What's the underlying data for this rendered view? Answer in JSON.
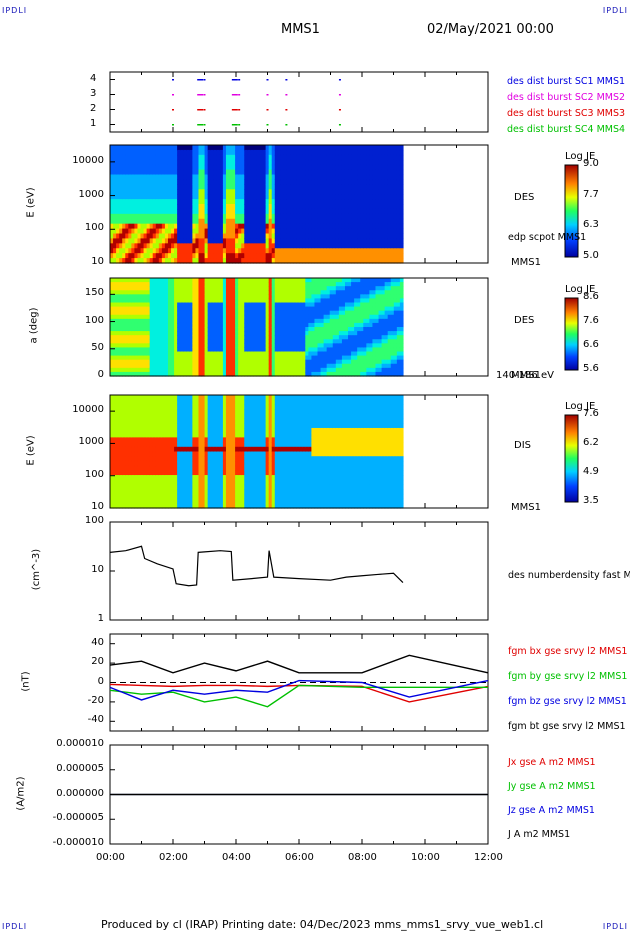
{
  "corners": {
    "tl": "IPDLI",
    "tr": "IPDLI",
    "bl": "IPDLI",
    "br": "IPDLI"
  },
  "header": {
    "mission": "MMS1",
    "date": "02/May/2021 00:00"
  },
  "footer": {
    "text": "Produced by cl (IRAP)   Printing date: 04/Dec/2023   mms_mms1_srvy_vue_web1.cl"
  },
  "colors": {
    "red": "#e00000",
    "magenta": "#e000e0",
    "blue": "#0000e0",
    "green": "#00c000",
    "black": "#000000"
  },
  "chart_data": [
    {
      "type": "scatter",
      "title": "",
      "x_ticks": [
        "00:00",
        "02:00",
        "04:00",
        "06:00",
        "08:00",
        "10:00",
        "12:00"
      ],
      "y_ticks": [
        "1",
        "2",
        "3",
        "4"
      ],
      "ylim": [
        0.5,
        4.5
      ],
      "legend": [
        {
          "name": "des dist burst SC1 MMS1",
          "color": "#0000e0"
        },
        {
          "name": "des dist burst SC2 MMS2",
          "color": "#e000e0"
        },
        {
          "name": "des dist burst SC3 MMS3",
          "color": "#e00000"
        },
        {
          "name": "des dist burst SC4 MMS4",
          "color": "#00c000"
        }
      ],
      "burst_hours": [
        2.0,
        2.8,
        3.0,
        3.9,
        4.1,
        5.0,
        5.6,
        7.3
      ]
    },
    {
      "type": "heatmap",
      "ylabel": "E (eV)",
      "y_ticks": [
        "10",
        "100",
        "1000",
        "10000"
      ],
      "instrument": "DES",
      "extra_label": "edp scpot MMS1",
      "sc_label": "MMS1",
      "colorbar": {
        "title": "Log JE",
        "ticks": [
          "9.0",
          "7.7",
          "6.3",
          "5.0"
        ]
      },
      "data_hours": [
        0,
        9.3
      ]
    },
    {
      "type": "heatmap",
      "ylabel": "a (deg)",
      "y_ticks": [
        "0",
        "50",
        "100",
        "150"
      ],
      "instrument": "DES",
      "sc_label": "MMS1",
      "energy_label": "140-186 eV",
      "colorbar": {
        "title": "Log JE",
        "ticks": [
          "8.6",
          "7.6",
          "6.6",
          "5.6"
        ]
      },
      "data_hours": [
        0,
        9.3
      ]
    },
    {
      "type": "heatmap",
      "ylabel": "E (eV)",
      "y_ticks": [
        "10",
        "100",
        "1000",
        "10000"
      ],
      "instrument": "DIS",
      "sc_label": "MMS1",
      "colorbar": {
        "title": "Log JE",
        "ticks": [
          "7.6",
          "6.2",
          "4.9",
          "3.5"
        ]
      },
      "data_hours": [
        0,
        9.3
      ]
    },
    {
      "type": "line",
      "ylabel": "(cm^-3)",
      "y_ticks": [
        "1",
        "10",
        "100"
      ],
      "yscale": "log",
      "ylim": [
        1,
        100
      ],
      "series": [
        {
          "name": "des numberdensity fast M",
          "color": "#000000",
          "x": [
            0,
            0.5,
            1.0,
            1.1,
            1.5,
            2.0,
            2.1,
            2.5,
            2.75,
            2.8,
            3.5,
            3.85,
            3.9,
            4.5,
            5.0,
            5.05,
            5.2,
            6.0,
            7.0,
            7.5,
            8.0,
            8.5,
            9.0,
            9.3
          ],
          "y": [
            24,
            26,
            32,
            18,
            14,
            11,
            5.5,
            5,
            5.2,
            24,
            26,
            25,
            6.5,
            7,
            7.5,
            26,
            7.5,
            7,
            6.5,
            7.5,
            8,
            8.5,
            9,
            5.8
          ]
        }
      ]
    },
    {
      "type": "line",
      "ylabel": "(nT)",
      "y_ticks": [
        "-40",
        "-20",
        "0",
        "20",
        "40"
      ],
      "ylim": [
        -50,
        50
      ],
      "series": [
        {
          "name": "fgm bx gse srvy l2 MMS1",
          "color": "#e00000",
          "x": [
            0,
            1,
            2,
            3,
            4,
            5,
            6,
            8,
            9.5,
            12
          ],
          "y": [
            -2,
            -3,
            -4,
            -3,
            -3,
            -4,
            -3,
            -4,
            -20,
            -4
          ]
        },
        {
          "name": "fgm by gse srvy l2 MMS1",
          "color": "#00c000",
          "x": [
            0,
            1,
            2,
            3,
            4,
            5,
            6,
            8,
            9.5,
            12
          ],
          "y": [
            -8,
            -12,
            -10,
            -20,
            -15,
            -25,
            -3,
            -5,
            -5,
            -5
          ]
        },
        {
          "name": "fgm bz gse srvy l2 MMS1",
          "color": "#0000e0",
          "x": [
            0,
            1,
            2,
            3,
            4,
            5,
            6,
            8,
            9.5,
            12
          ],
          "y": [
            -5,
            -18,
            -8,
            -12,
            -8,
            -10,
            2,
            0,
            -15,
            2
          ]
        },
        {
          "name": "fgm bt gse srvy l2 MMS1",
          "color": "#000000",
          "x": [
            0,
            1,
            2,
            3,
            4,
            5,
            6,
            8,
            9.5,
            12
          ],
          "y": [
            18,
            22,
            10,
            20,
            12,
            22,
            10,
            10,
            28,
            10
          ]
        }
      ]
    },
    {
      "type": "line",
      "ylabel": "(A/m2)",
      "y_ticks": [
        "-0.000010",
        "-0.000005",
        "0.000000",
        "0.000005",
        "0.000010"
      ],
      "ylim": [
        -1e-05,
        1e-05
      ],
      "series": [
        {
          "name": "Jx gse A m2 MMS1",
          "color": "#e00000",
          "x": [
            0,
            12
          ],
          "y": [
            0,
            0
          ]
        },
        {
          "name": "Jy gse A m2 MMS1",
          "color": "#00c000",
          "x": [
            0,
            12
          ],
          "y": [
            0,
            0
          ]
        },
        {
          "name": "Jz gse A m2 MMS1",
          "color": "#0000e0",
          "x": [
            0,
            12
          ],
          "y": [
            0,
            0
          ]
        },
        {
          "name": "J A m2 MMS1",
          "color": "#000000",
          "x": [
            0,
            12
          ],
          "y": [
            0,
            0
          ]
        }
      ]
    }
  ]
}
